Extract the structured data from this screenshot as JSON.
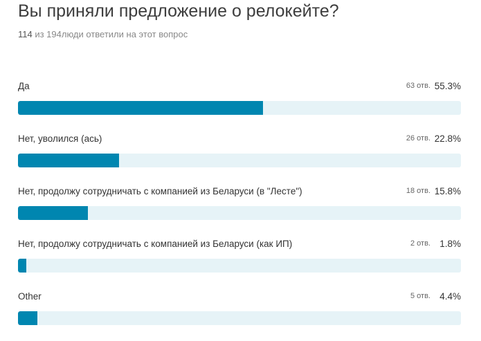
{
  "title": "Вы приняли предложение о релокейте?",
  "subtitle": {
    "answered": "114",
    "rest": " из 194люди ответили на этот вопрос"
  },
  "colors": {
    "bar_fill": "#0086b0",
    "bar_track": "#e6f3f7"
  },
  "chart_data": {
    "type": "bar",
    "orientation": "horizontal",
    "categories": [
      "Да",
      "Нет, уволился (ась)",
      "Нет, продолжу сотрудничать с компанией из Беларуси (в \"Лесте\")",
      "Нет, продолжу сотрудничать с компанией из Беларуси (как ИП)",
      "Other"
    ],
    "counts": [
      "63 отв.",
      "26 отв.",
      "18 отв.",
      "2 отв.",
      "5 отв."
    ],
    "percent_labels": [
      "55.3%",
      "22.8%",
      "15.8%",
      "1.8%",
      "4.4%"
    ],
    "values": [
      55.3,
      22.8,
      15.8,
      1.8,
      4.4
    ],
    "xlim": [
      0,
      100
    ]
  }
}
